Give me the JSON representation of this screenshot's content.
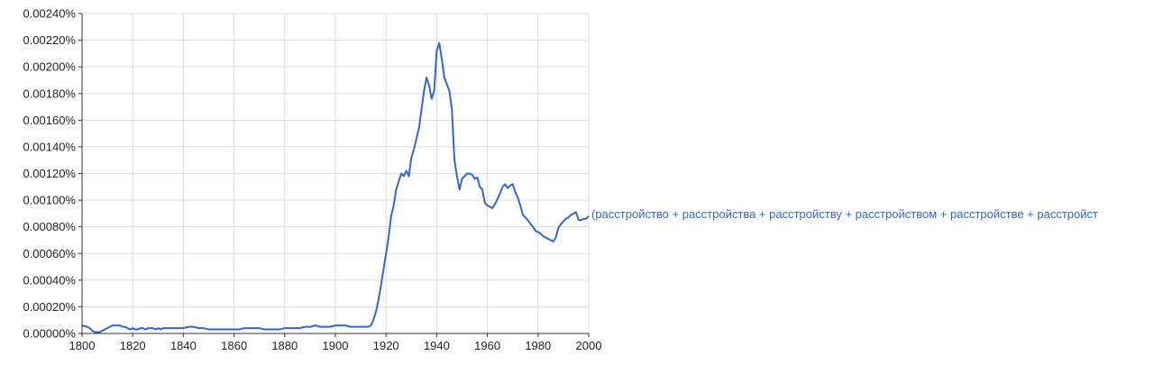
{
  "chart_data": {
    "type": "line",
    "title": "",
    "xlabel": "",
    "ylabel": "",
    "xlim": [
      1800,
      2000
    ],
    "ylim": [
      0,
      0.0024
    ],
    "x_ticks": [
      "1800",
      "1820",
      "1840",
      "1860",
      "1880",
      "1900",
      "1920",
      "1940",
      "1960",
      "1980",
      "2000"
    ],
    "y_ticks": [
      "0.00000%",
      "0.00020%",
      "0.00040%",
      "0.00060%",
      "0.00080%",
      "0.00100%",
      "0.00120%",
      "0.00140%",
      "0.00160%",
      "0.00180%",
      "0.00200%",
      "0.00220%",
      "0.00240%"
    ],
    "grid": true,
    "series": [
      {
        "name": "(расстройство + расстройства + расстройству + расстройством + расстройстве + расстройст",
        "color": "#3366cc",
        "x": [
          1800,
          1802,
          1803,
          1804,
          1805,
          1806,
          1807,
          1808,
          1809,
          1810,
          1811,
          1812,
          1814,
          1815,
          1816,
          1817,
          1818,
          1819,
          1820,
          1821,
          1822,
          1823,
          1824,
          1825,
          1826,
          1827,
          1828,
          1829,
          1830,
          1831,
          1832,
          1833,
          1834,
          1836,
          1838,
          1840,
          1842,
          1844,
          1846,
          1848,
          1850,
          1852,
          1854,
          1856,
          1858,
          1860,
          1862,
          1864,
          1866,
          1868,
          1870,
          1872,
          1874,
          1876,
          1878,
          1880,
          1882,
          1884,
          1886,
          1888,
          1890,
          1892,
          1894,
          1896,
          1898,
          1900,
          1902,
          1904,
          1906,
          1908,
          1910,
          1911,
          1912,
          1913,
          1914,
          1915,
          1916,
          1917,
          1918,
          1919,
          1920,
          1921,
          1922,
          1923,
          1924,
          1925,
          1926,
          1927,
          1928,
          1929,
          1930,
          1931,
          1932,
          1933,
          1934,
          1935,
          1936,
          1937,
          1938,
          1939,
          1940,
          1941,
          1942,
          1943,
          1944,
          1945,
          1946,
          1947,
          1948,
          1949,
          1950,
          1951,
          1952,
          1953,
          1954,
          1955,
          1956,
          1957,
          1958,
          1959,
          1960,
          1961,
          1962,
          1963,
          1964,
          1965,
          1966,
          1967,
          1968,
          1969,
          1970,
          1971,
          1972,
          1973,
          1974,
          1975,
          1976,
          1977,
          1978,
          1979,
          1980,
          1981,
          1982,
          1983,
          1984,
          1985,
          1986,
          1987,
          1988,
          1989,
          1990,
          1991,
          1992,
          1993,
          1994,
          1995,
          1996,
          1997,
          1998,
          1999,
          2000
        ],
        "y": [
          6e-05,
          5e-05,
          4e-05,
          2e-05,
          1e-05,
          1e-05,
          1e-05,
          2e-05,
          3e-05,
          4e-05,
          5e-05,
          6e-05,
          6e-05,
          6e-05,
          5e-05,
          5e-05,
          4e-05,
          3e-05,
          4e-05,
          3e-05,
          3e-05,
          4e-05,
          4e-05,
          3e-05,
          4e-05,
          4e-05,
          4e-05,
          3e-05,
          4e-05,
          3e-05,
          4e-05,
          4e-05,
          4e-05,
          4e-05,
          4e-05,
          4e-05,
          5e-05,
          5e-05,
          4e-05,
          4e-05,
          3e-05,
          3e-05,
          3e-05,
          3e-05,
          3e-05,
          3e-05,
          3e-05,
          4e-05,
          4e-05,
          4e-05,
          4e-05,
          3e-05,
          3e-05,
          3e-05,
          3e-05,
          4e-05,
          4e-05,
          4e-05,
          4e-05,
          5e-05,
          5e-05,
          6e-05,
          5e-05,
          5e-05,
          5e-05,
          6e-05,
          6e-05,
          6e-05,
          5e-05,
          5e-05,
          5e-05,
          5e-05,
          5e-05,
          5e-05,
          6e-05,
          0.0001,
          0.00016,
          0.00025,
          0.00036,
          0.00048,
          0.0006,
          0.00072,
          0.00088,
          0.00096,
          0.00108,
          0.00114,
          0.0012,
          0.00118,
          0.00122,
          0.00118,
          0.00132,
          0.00138,
          0.00146,
          0.00154,
          0.00168,
          0.00182,
          0.00192,
          0.00186,
          0.00176,
          0.00182,
          0.00212,
          0.00218,
          0.00206,
          0.00192,
          0.00187,
          0.00182,
          0.00168,
          0.0013,
          0.00118,
          0.00108,
          0.00116,
          0.00118,
          0.0012,
          0.0012,
          0.00119,
          0.00116,
          0.00117,
          0.0011,
          0.00108,
          0.00098,
          0.00096,
          0.00095,
          0.00094,
          0.00097,
          0.00101,
          0.00105,
          0.0011,
          0.00112,
          0.00109,
          0.00111,
          0.00112,
          0.00106,
          0.00102,
          0.00096,
          0.00089,
          0.00087,
          0.00085,
          0.00082,
          0.0008,
          0.00077,
          0.00076,
          0.00075,
          0.00073,
          0.00072,
          0.00071,
          0.0007,
          0.00069,
          0.00072,
          0.00079,
          0.00082,
          0.00084,
          0.00086,
          0.00087,
          0.00089,
          0.0009,
          0.00091,
          0.00085,
          0.00085,
          0.00086,
          0.00086,
          0.00088
        ]
      }
    ]
  }
}
